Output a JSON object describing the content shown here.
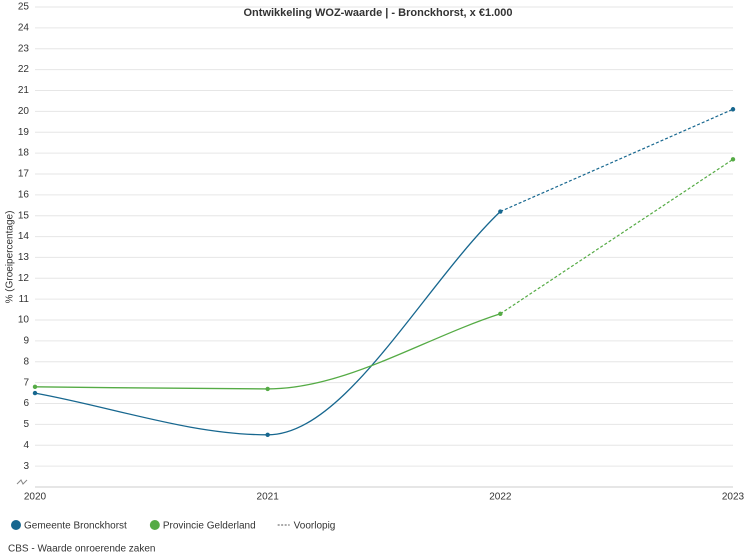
{
  "chart_data": {
    "type": "line",
    "title": "Ontwikkeling WOZ-waarde | - Bronckhorst, x €1.000",
    "y_label": "% (Groeipercentage)",
    "categories": [
      "2020",
      "2021",
      "2022",
      "2023"
    ],
    "series": [
      {
        "name": "Gemeente Bronckhorst",
        "color": "#17678f",
        "values": [
          6.5,
          4.5,
          15.2,
          20.1
        ]
      },
      {
        "name": "Provincie Gelderland",
        "color": "#55ab45",
        "values": [
          6.8,
          6.7,
          10.3,
          17.7
        ]
      }
    ],
    "dashed_from": 2,
    "dashed_label": "Voorlopig",
    "ylim": [
      2,
      25
    ],
    "yticks": [
      3,
      4,
      5,
      6,
      7,
      8,
      9,
      10,
      11,
      12,
      13,
      14,
      15,
      16,
      17,
      18,
      19,
      20,
      21,
      22,
      23,
      24,
      25
    ],
    "grid": true,
    "source": "CBS - Waarde onroerende zaken"
  }
}
